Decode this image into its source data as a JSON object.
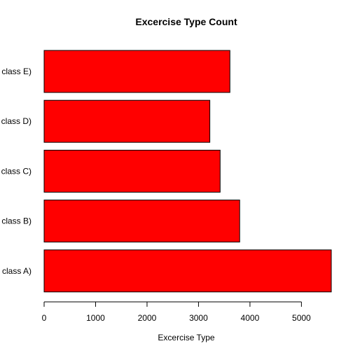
{
  "chart_data": {
    "type": "bar",
    "orientation": "horizontal",
    "title": "Excercise Type Count",
    "xlabel": "Excercise Type",
    "ylabel": "",
    "categories": [
      "class A)",
      "class B)",
      "class C)",
      "class D)",
      "class E)"
    ],
    "values": [
      5580,
      3800,
      3420,
      3220,
      3610
    ],
    "xlim": [
      0,
      5580
    ],
    "xticks": [
      0,
      1000,
      2000,
      3000,
      4000,
      5000
    ],
    "bar_color": "#ff0000",
    "bar_border_color": "#000000",
    "grid": false,
    "legend": "none"
  }
}
